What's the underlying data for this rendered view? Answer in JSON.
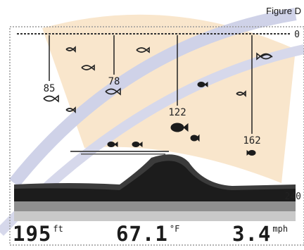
{
  "figure_label": "Figure D",
  "top_scale": "0",
  "bottom_scale": "240",
  "fish_depths": [
    "85",
    "78",
    "122",
    "162"
  ],
  "readouts": {
    "depth": {
      "value": "195",
      "unit": "ft"
    },
    "temperature": {
      "value": "67.1",
      "unit": "°F"
    },
    "speed": {
      "value": "3.4",
      "unit": "mph"
    }
  },
  "colors": {
    "background": "#ffffff",
    "watermark_orange": "#f6dcb8",
    "watermark_blue": "#c4c8e2",
    "ink": "#1c1c1c"
  }
}
